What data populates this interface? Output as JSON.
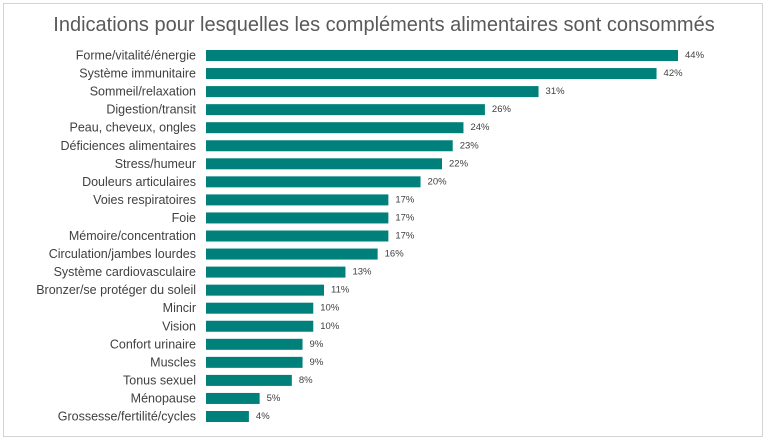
{
  "chart_data": {
    "type": "bar",
    "orientation": "horizontal",
    "title": "Indications pour lesquelles les compléments alimentaires sont consommés",
    "categories": [
      "Forme/vitalité/énergie",
      "Système immunitaire",
      "Sommeil/relaxation",
      "Digestion/transit",
      "Peau, cheveux, ongles",
      "Déficiences alimentaires",
      "Stress/humeur",
      "Douleurs articulaires",
      "Voies respiratoires",
      "Foie",
      "Mémoire/concentration",
      "Circulation/jambes lourdes",
      "Système cardiovasculaire",
      "Bronzer/se protéger du soleil",
      "Mincir",
      "Vision",
      "Confort urinaire",
      "Muscles",
      "Tonus sexuel",
      "Ménopause",
      "Grossesse/fertilité/cycles"
    ],
    "values": [
      44,
      42,
      31,
      26,
      24,
      23,
      22,
      20,
      17,
      17,
      17,
      16,
      13,
      11,
      10,
      10,
      9,
      9,
      8,
      5,
      4
    ],
    "value_labels": [
      "44%",
      "42%",
      "31%",
      "26%",
      "24%",
      "23%",
      "22%",
      "20%",
      "17%",
      "17%",
      "17%",
      "16%",
      "13%",
      "11%",
      "10%",
      "10%",
      "9%",
      "9%",
      "8%",
      "5%",
      "4%"
    ],
    "unit": "%",
    "xlim": [
      0,
      44
    ],
    "grid": false,
    "legend": "none",
    "bar_color": "#00807a"
  }
}
